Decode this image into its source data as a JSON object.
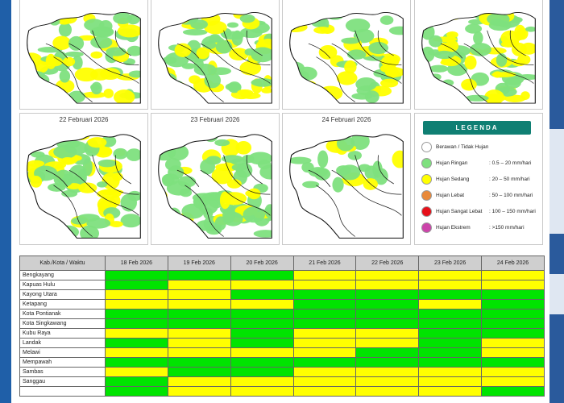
{
  "colors": {
    "green": "#00e400",
    "yellow": "#ffff00",
    "orange": "#e8893a",
    "red": "#e6101a",
    "magenta": "#cc44aa",
    "white": "#ffffff",
    "legend_header": "#0f7f73"
  },
  "maps": {
    "top_row": [
      {
        "date": "",
        "coverage": "heavy"
      },
      {
        "date": "",
        "coverage": "heavy"
      },
      {
        "date": "",
        "coverage": "medium"
      },
      {
        "date": "",
        "coverage": "heavy"
      }
    ],
    "bottom_row": [
      {
        "date": "22 Februari 2026",
        "coverage": "heavy"
      },
      {
        "date": "23 Februari 2026",
        "coverage": "heavy"
      },
      {
        "date": "24 Februari 2026",
        "coverage": "light"
      }
    ]
  },
  "legend": {
    "title": "LEGENDA",
    "items": [
      {
        "label": "Berawan / Tidak Hujan",
        "range": "",
        "color": "#ffffff"
      },
      {
        "label": "Hujan Ringan",
        "range": ": 0.5 – 20 mm/hari",
        "color": "#7ee07e"
      },
      {
        "label": "Hujan Sedang",
        "range": ": 20 – 50 mm/hari",
        "color": "#ffff00"
      },
      {
        "label": "Hujan Lebat",
        "range": ": 50 – 100 mm/hari",
        "color": "#e8893a"
      },
      {
        "label": "Hujan Sangat Lebat",
        "range": ": 100 – 150 mm/hari",
        "color": "#e6101a"
      },
      {
        "label": "Hujan Ekstrem",
        "range": ": >150 mm/hari",
        "color": "#cc44aa"
      }
    ]
  },
  "table": {
    "header_first": "Kab./Kota / Waktu",
    "dates": [
      "18 Feb 2026",
      "19 Feb 2026",
      "20 Feb 2026",
      "21 Feb 2026",
      "22 Feb 2026",
      "23 Feb 2026",
      "24 Feb 2026"
    ],
    "rows": [
      {
        "name": "Bengkayang",
        "cells": [
          "g",
          "g",
          "g",
          "y",
          "y",
          "y",
          "y"
        ]
      },
      {
        "name": "Kapuas Hulu",
        "cells": [
          "g",
          "y",
          "y",
          "y",
          "y",
          "y",
          "y"
        ]
      },
      {
        "name": "Kayong Utara",
        "cells": [
          "y",
          "y",
          "g",
          "g",
          "g",
          "g",
          "g"
        ]
      },
      {
        "name": "Ketapang",
        "cells": [
          "y",
          "y",
          "y",
          "g",
          "g",
          "y",
          "g"
        ]
      },
      {
        "name": "Kota Pontianak",
        "cells": [
          "g",
          "g",
          "g",
          "g",
          "g",
          "g",
          "g"
        ]
      },
      {
        "name": "Kota Singkawang",
        "cells": [
          "g",
          "g",
          "g",
          "g",
          "g",
          "g",
          "g"
        ]
      },
      {
        "name": "Kubu Raya",
        "cells": [
          "y",
          "y",
          "g",
          "y",
          "y",
          "g",
          "g"
        ]
      },
      {
        "name": "Landak",
        "cells": [
          "g",
          "y",
          "g",
          "y",
          "y",
          "g",
          "y"
        ]
      },
      {
        "name": "Melawi",
        "cells": [
          "y",
          "y",
          "y",
          "y",
          "g",
          "g",
          "y"
        ]
      },
      {
        "name": "Mempawah",
        "cells": [
          "g",
          "g",
          "g",
          "g",
          "g",
          "g",
          "g"
        ]
      },
      {
        "name": "Sambas",
        "cells": [
          "y",
          "g",
          "g",
          "y",
          "y",
          "y",
          "y"
        ]
      },
      {
        "name": "Sanggau",
        "cells": [
          "g",
          "y",
          "y",
          "y",
          "y",
          "y",
          "y"
        ]
      },
      {
        "name": "",
        "cells": [
          "g",
          "y",
          "y",
          "y",
          "y",
          "y",
          "g"
        ]
      }
    ]
  }
}
